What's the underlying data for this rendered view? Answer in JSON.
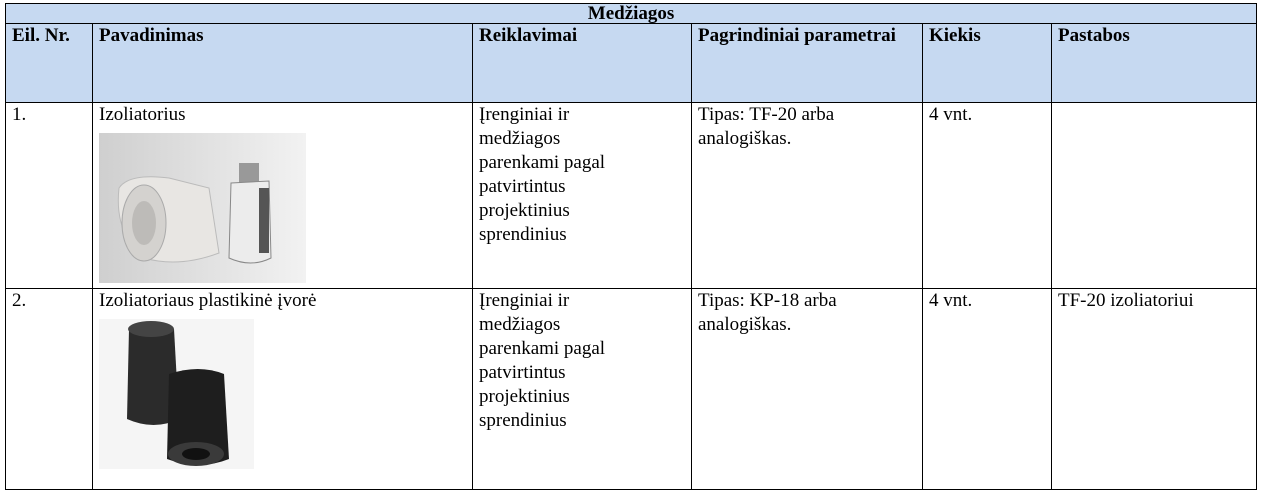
{
  "header": {
    "title": "Medžiagos"
  },
  "table": {
    "columns": [
      "Eil. Nr.",
      "Pavadinimas",
      "Reiklavimai",
      "Pagrindiniai parametrai",
      "Kiekis",
      "Pastabos"
    ],
    "rows": [
      {
        "no": "1.",
        "name": "Izoliatorius",
        "requirements": [
          "Įrenginiai ir",
          "medžiagos",
          "parenkami pagal",
          "patvirtintus",
          "projektinius",
          "sprendinius"
        ],
        "params": "Tipas: TF-20 arba analogiškas.",
        "qty": "4 vnt.",
        "notes": ""
      },
      {
        "no": "2.",
        "name": "Izoliatoriaus plastikinė įvorė",
        "requirements": [
          "Įrenginiai ir",
          "medžiagos",
          "parenkami pagal",
          "patvirtintus",
          "projektinius",
          "sprendinius"
        ],
        "params": "Tipas: KP-18 arba analogiškas.",
        "qty": "4 vnt.",
        "notes": "TF-20 izoliatoriui"
      }
    ]
  }
}
